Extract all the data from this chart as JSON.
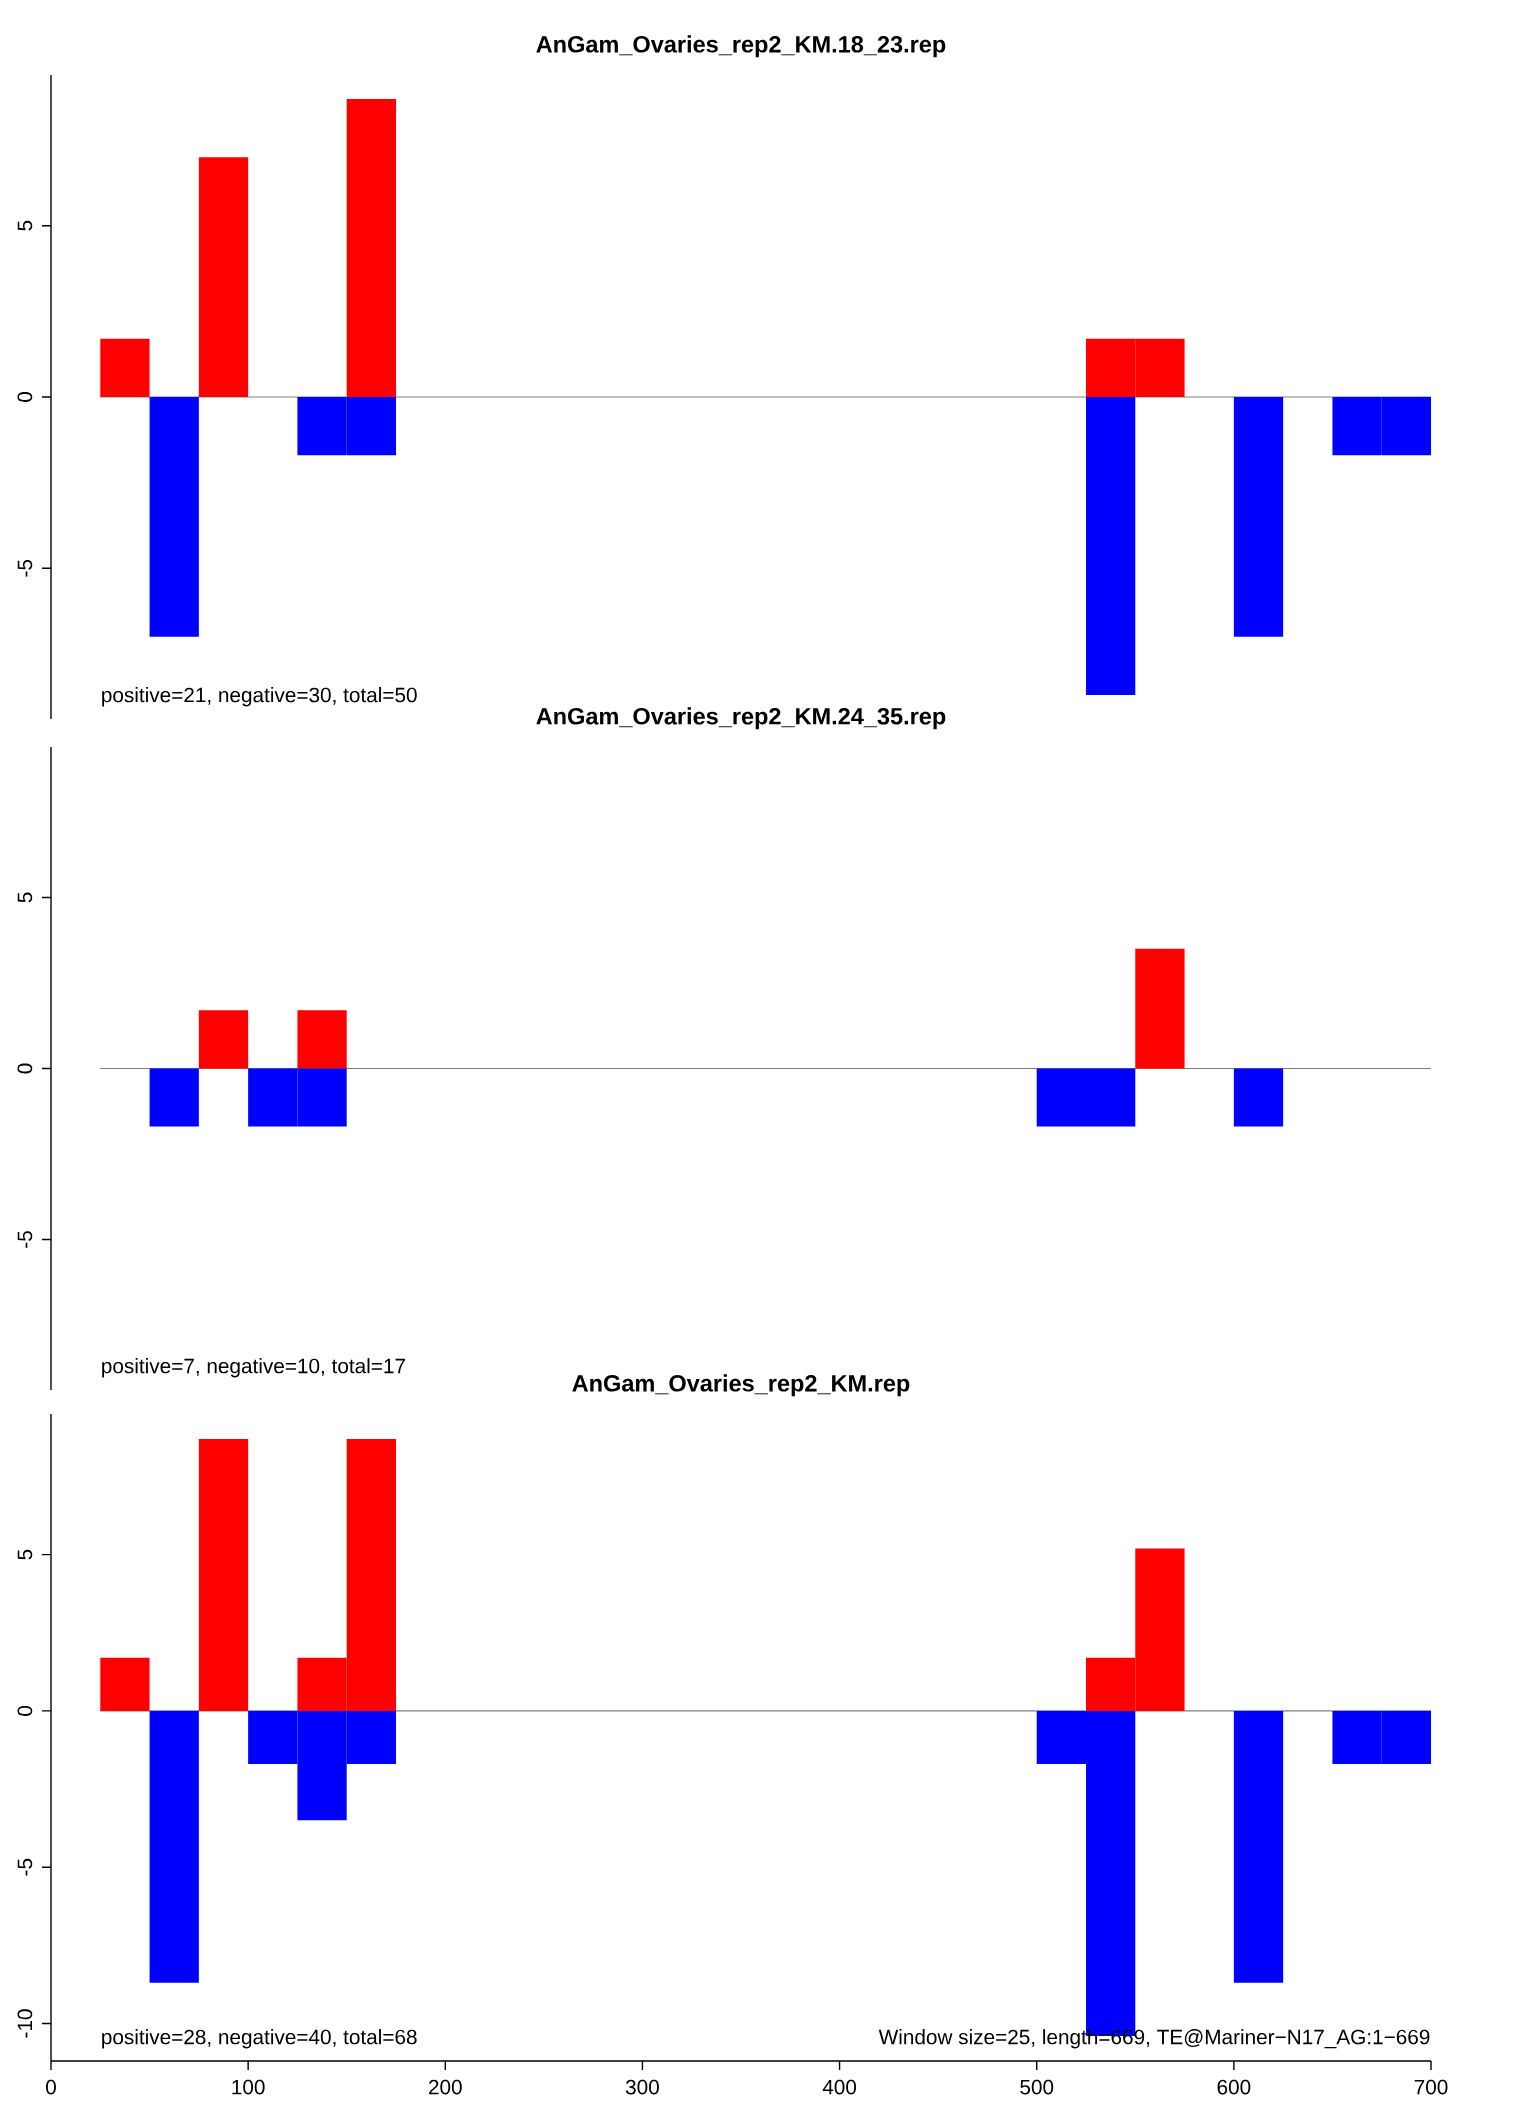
{
  "chart_data": [
    {
      "type": "bar",
      "title": "AnGam_Ovaries_rep2_KM.18_23.rep",
      "xlim": [
        0,
        700
      ],
      "ylim": [
        -9.4,
        9.4
      ],
      "yticks": [
        -5,
        0,
        5
      ],
      "tick_labels": "y",
      "series": [
        {
          "color": "#ff0000",
          "x": [
            37.5,
            87.5,
            162.5,
            537.5,
            562.5
          ],
          "values": [
            1.7,
            7.0,
            8.7,
            1.7,
            1.7
          ]
        },
        {
          "color": "#0000ff",
          "x": [
            62.5,
            137.5,
            162.5,
            537.5,
            612.5,
            662.5,
            687.5
          ],
          "values": [
            -7.0,
            -1.7,
            -1.7,
            -8.7,
            -7.0,
            -1.7,
            -1.7
          ]
        }
      ],
      "ref_lines": [
        {
          "axis": "y",
          "value": 0,
          "color": "#808080"
        }
      ],
      "annotations": [
        "positive=21, negative=30, total=50"
      ]
    },
    {
      "type": "bar",
      "title": "AnGam_Ovaries_rep2_KM.24_35.rep",
      "xlim": [
        0,
        700
      ],
      "ylim": [
        -9.4,
        9.4
      ],
      "yticks": [
        -5,
        0,
        5
      ],
      "tick_labels": "y",
      "series": [
        {
          "color": "#ff0000",
          "x": [
            87.5,
            137.5,
            562.5
          ],
          "values": [
            1.7,
            1.7,
            3.5
          ]
        },
        {
          "color": "#0000ff",
          "x": [
            62.5,
            112.5,
            137.5,
            512.5,
            537.5,
            612.5
          ],
          "values": [
            -1.7,
            -1.7,
            -1.7,
            -1.7,
            -1.7,
            -1.7
          ]
        }
      ],
      "ref_lines": [
        {
          "axis": "y",
          "value": 0,
          "color": "#808080"
        }
      ],
      "annotations": [
        "positive=7, negative=10, total=17"
      ]
    },
    {
      "type": "bar",
      "title": "AnGam_Ovaries_rep2_KM.rep",
      "xlim": [
        0,
        700
      ],
      "xticks": [
        0,
        100,
        200,
        300,
        400,
        500,
        600,
        700
      ],
      "ylim": [
        -11.2,
        9.5
      ],
      "yticks": [
        -10,
        -5,
        0,
        5
      ],
      "series": [
        {
          "color": "#ff0000",
          "x": [
            37.5,
            87.5,
            137.5,
            162.5,
            537.5,
            562.5
          ],
          "values": [
            1.7,
            8.7,
            1.7,
            8.7,
            1.7,
            5.2
          ]
        },
        {
          "color": "#0000ff",
          "x": [
            62.5,
            112.5,
            137.5,
            162.5,
            512.5,
            537.5,
            612.5,
            662.5,
            687.5
          ],
          "values": [
            -8.7,
            -1.7,
            -3.5,
            -1.7,
            -1.7,
            -10.4,
            -8.7,
            -1.7,
            -1.7
          ]
        }
      ],
      "ref_lines": [
        {
          "axis": "y",
          "value": 0,
          "color": "#808080"
        }
      ],
      "annotations": [
        "positive=28, negative=40, total=68",
        "Window size=25, length=669, TE@Mariner−N17_AG:1−669"
      ]
    }
  ]
}
